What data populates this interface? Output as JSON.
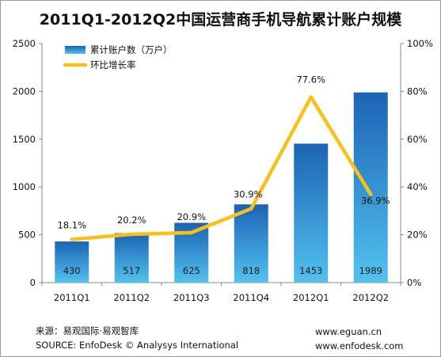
{
  "title": "2011Q1-2012Q2中国运营商手机导航累计账户规模",
  "chart_data": {
    "type": "bar",
    "categories": [
      "2011Q1",
      "2011Q2",
      "2011Q3",
      "2011Q4",
      "2012Q1",
      "2012Q2"
    ],
    "series": [
      {
        "name": "累计账户数（万户）",
        "type": "bar",
        "axis": "left",
        "values": [
          430,
          517,
          625,
          818,
          1453,
          1989
        ],
        "labels": [
          "430",
          "517",
          "625",
          "818",
          "1453",
          "1989"
        ]
      },
      {
        "name": "环比增长率",
        "type": "line",
        "axis": "right",
        "values": [
          18.1,
          20.2,
          20.9,
          30.9,
          77.6,
          36.9
        ],
        "labels": [
          "18.1%",
          "20.2%",
          "20.9%",
          "30.9%",
          "77.6%",
          "36.9%"
        ]
      }
    ],
    "y_left": {
      "min": 0,
      "max": 2500,
      "ticks": [
        "0",
        "500",
        "1000",
        "1500",
        "2000",
        "2500"
      ]
    },
    "y_right": {
      "min": 0,
      "max": 100,
      "ticks": [
        "0%",
        "20%",
        "40%",
        "60%",
        "80%",
        "100%"
      ]
    },
    "legend": {
      "placement": "top-left"
    },
    "colors": {
      "bar_top": "#1c63b4",
      "bar_bottom": "#52c2ee",
      "line": "#f8c019"
    }
  },
  "footer": {
    "source_cn": "来源：易观国际·易观智库",
    "source_en": "SOURCE: EnfoDesk © Analysys International",
    "url1": "www.eguan.cn",
    "url2": "www.enfodesk.com"
  }
}
